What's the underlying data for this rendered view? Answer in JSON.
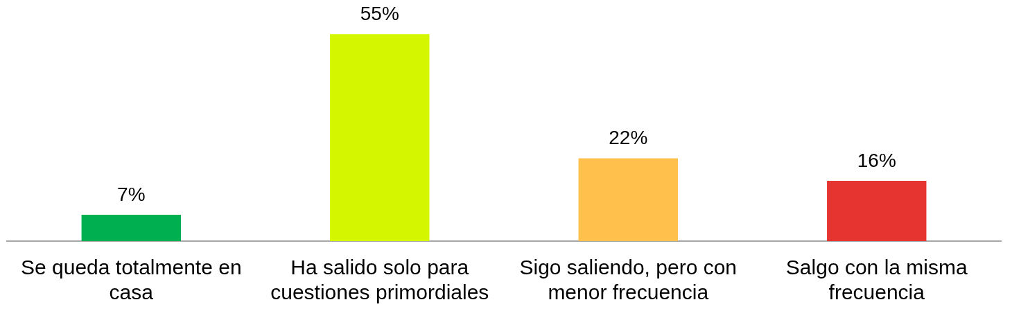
{
  "chart_data": {
    "type": "bar",
    "categories": [
      "Se queda totalmente en casa",
      "Ha salido solo para cuestiones primordiales",
      "Sigo saliendo, pero con menor frecuencia",
      "Salgo con la misma frecuencia"
    ],
    "values": [
      7,
      55,
      22,
      16
    ],
    "colors": [
      "#00b050",
      "#d4f700",
      "#ffc04c",
      "#e63430"
    ],
    "value_labels": [
      "7%",
      "55%",
      "22%",
      "16%"
    ],
    "grid": false,
    "legend": false
  }
}
